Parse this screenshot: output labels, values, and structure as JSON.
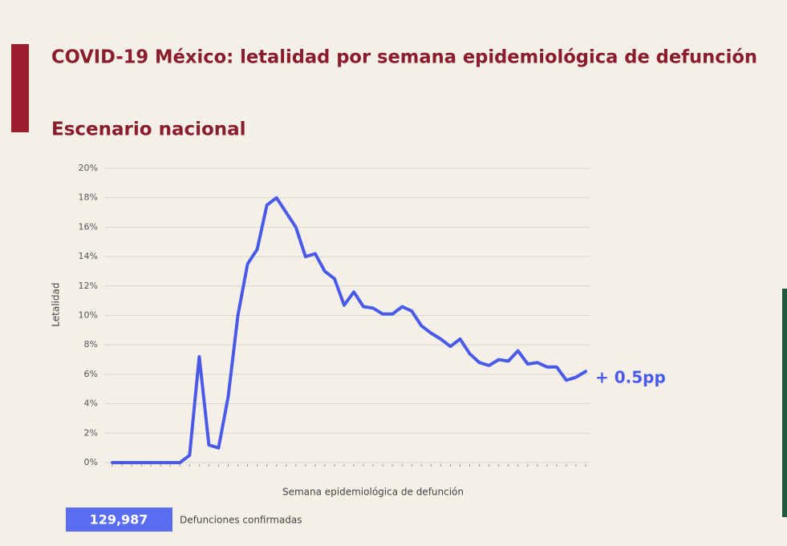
{
  "chart_data": {
    "type": "line",
    "title": "COVID-19 México: letalidad por semana epidemiológica de defunción",
    "subtitle": "Escenario nacional",
    "y_label": "Letalidad",
    "x_label": "Semana epidemiológica de defunción",
    "annotation": "+ 0.5pp",
    "counter": {
      "value": "129,987",
      "label": "Defunciones confirmadas"
    },
    "categories": [
      null,
      null,
      null,
      null,
      null,
      null,
      null,
      null,
      null,
      null,
      null,
      null,
      null,
      null,
      null,
      null,
      null,
      null,
      null,
      null,
      null,
      null,
      null,
      null,
      null,
      null,
      null,
      null,
      null,
      null,
      null,
      null,
      null,
      null,
      null,
      null,
      null,
      null,
      null,
      null,
      null,
      null,
      null,
      null,
      null,
      null,
      null,
      null,
      null,
      null
    ],
    "series": [
      {
        "name": "Letalidad",
        "color": "#4a5ae8",
        "values": [
          0,
          0,
          0,
          0,
          0,
          0,
          0,
          0,
          0.5,
          7.2,
          1.2,
          1.0,
          4.5,
          10,
          13.5,
          14.5,
          17.5,
          18,
          17,
          16,
          14,
          14.2,
          13,
          12.5,
          10.7,
          11.6,
          10.6,
          10.5,
          10.1,
          10.1,
          10.6,
          10.3,
          9.3,
          8.8,
          8.4,
          7.9,
          8.4,
          7.4,
          6.8,
          6.6,
          7.0,
          6.9,
          7.6,
          6.7,
          6.8,
          6.5,
          6.5,
          5.6,
          5.8,
          6.2
        ]
      }
    ],
    "ylim": [
      0,
      20
    ],
    "yticks": [
      {
        "value": 0,
        "label": "0%"
      },
      {
        "value": 2,
        "label": "2%"
      },
      {
        "value": 4,
        "label": "4%"
      },
      {
        "value": 6,
        "label": "6%"
      },
      {
        "value": 8,
        "label": "8%"
      },
      {
        "value": 10,
        "label": "10%"
      },
      {
        "value": 12,
        "label": "12%"
      },
      {
        "value": 14,
        "label": "14%"
      },
      {
        "value": 16,
        "label": "16%"
      },
      {
        "value": 18,
        "label": "18%"
      },
      {
        "value": 20,
        "label": "20%"
      }
    ],
    "grid": true
  }
}
